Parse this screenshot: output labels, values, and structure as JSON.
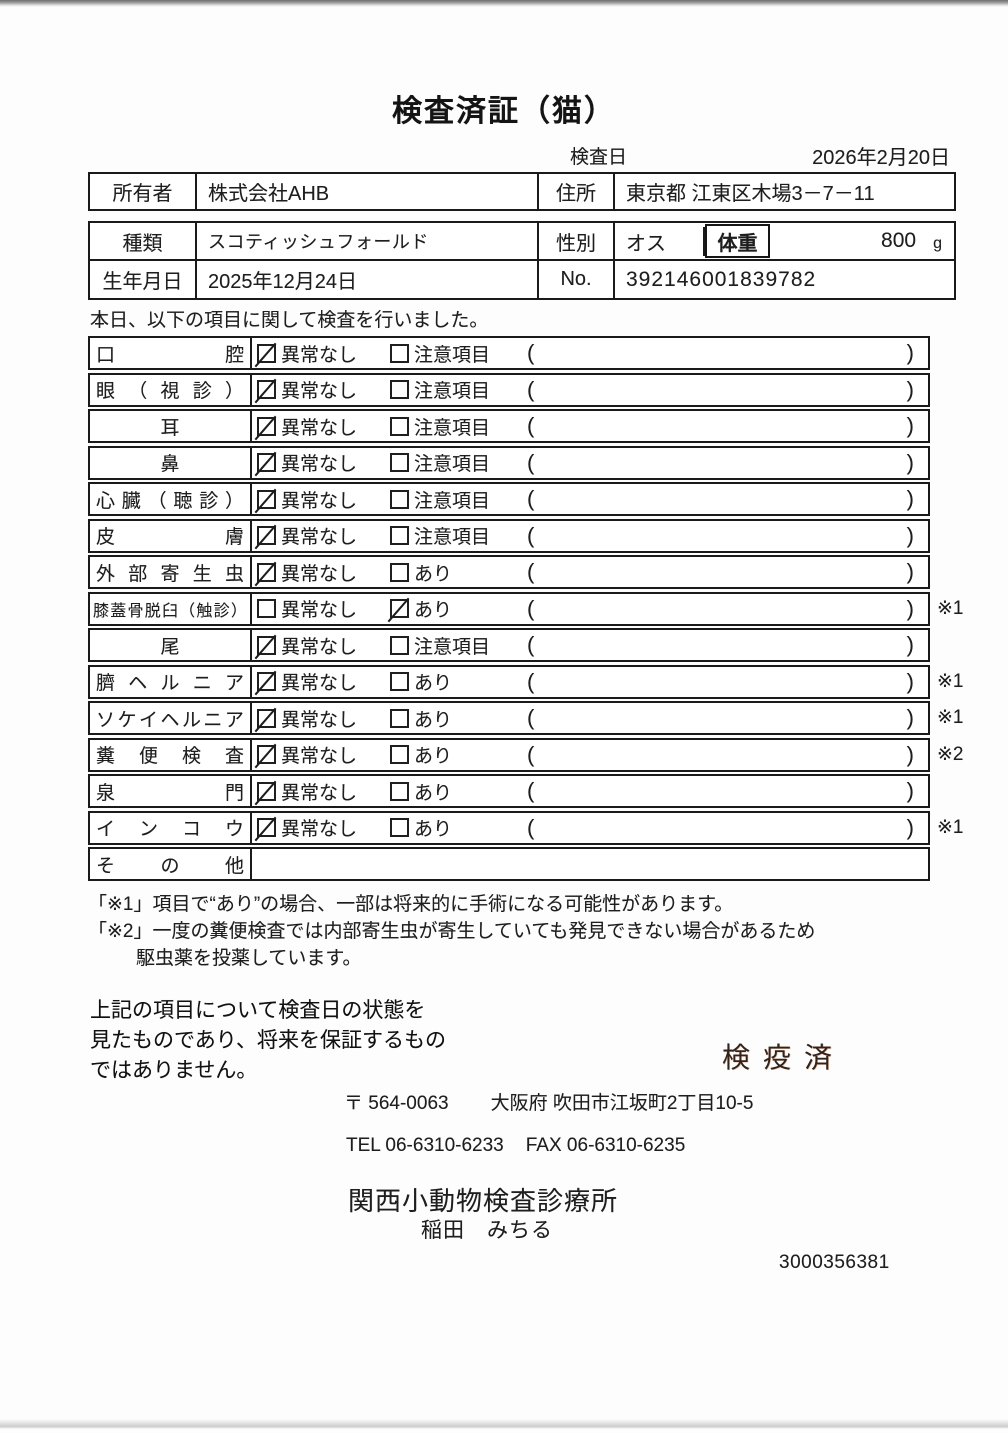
{
  "title": "検査済証（猫）",
  "inspection": {
    "date_label": "検査日",
    "date_value": "2026年2月20日"
  },
  "owner_box": {
    "owner_label": "所有者",
    "owner_value": "株式会社AHB",
    "address_label": "住所",
    "address_value": "東京都 江東区木場3－7－11"
  },
  "animal_box": {
    "breed_label": "種類",
    "breed_value": "スコティッシュフォールド",
    "sex_label": "性別",
    "sex_value": "オス",
    "weight_label": "体重",
    "weight_value": "800",
    "weight_unit": "g",
    "birth_label": "生年月日",
    "birth_value": "2025年12月24日",
    "no_label": "No.",
    "no_value": "392146001839782"
  },
  "intro": "本日、以下の項目に関して検査を行いました。",
  "table": {
    "parens": {
      "open": "(",
      "close": ")"
    },
    "rows": [
      {
        "label": "口腔",
        "opt1": "異常なし",
        "opt2": "注意項目",
        "checked1": true,
        "checked2": false,
        "note": ""
      },
      {
        "label": "眼（視診）",
        "opt1": "異常なし",
        "opt2": "注意項目",
        "checked1": true,
        "checked2": false,
        "note": ""
      },
      {
        "label": "耳",
        "opt1": "異常なし",
        "opt2": "注意項目",
        "checked1": true,
        "checked2": false,
        "note": ""
      },
      {
        "label": "鼻",
        "opt1": "異常なし",
        "opt2": "注意項目",
        "checked1": true,
        "checked2": false,
        "note": ""
      },
      {
        "label": "心臓（聴診）",
        "opt1": "異常なし",
        "opt2": "注意項目",
        "checked1": true,
        "checked2": false,
        "note": ""
      },
      {
        "label": "皮膚",
        "opt1": "異常なし",
        "opt2": "注意項目",
        "checked1": true,
        "checked2": false,
        "note": ""
      },
      {
        "label": "外部寄生虫",
        "opt1": "異常なし",
        "opt2": "あり",
        "checked1": true,
        "checked2": false,
        "note": ""
      },
      {
        "label": "膝蓋骨脱臼（触診）",
        "opt1": "異常なし",
        "opt2": "あり",
        "checked1": false,
        "checked2": true,
        "note": "※1"
      },
      {
        "label": "尾",
        "opt1": "異常なし",
        "opt2": "注意項目",
        "checked1": true,
        "checked2": false,
        "note": ""
      },
      {
        "label": "臍ヘルニア",
        "opt1": "異常なし",
        "opt2": "あり",
        "checked1": true,
        "checked2": false,
        "note": "※1"
      },
      {
        "label": "ソケイヘルニア",
        "opt1": "異常なし",
        "opt2": "あり",
        "checked1": true,
        "checked2": false,
        "note": "※1"
      },
      {
        "label": "糞便検査",
        "opt1": "異常なし",
        "opt2": "あり",
        "checked1": true,
        "checked2": false,
        "note": "※2"
      },
      {
        "label": "泉門",
        "opt1": "異常なし",
        "opt2": "あり",
        "checked1": true,
        "checked2": false,
        "note": ""
      },
      {
        "label": "インコウ",
        "opt1": "異常なし",
        "opt2": "あり",
        "checked1": true,
        "checked2": false,
        "note": "※1"
      },
      {
        "label": "その他",
        "opt1": "",
        "opt2": "",
        "checked1": false,
        "checked2": false,
        "note": ""
      }
    ]
  },
  "notes": {
    "note1": "「※1」項目で“あり”の場合、一部は将来的に手術になる可能性があります。",
    "note2": "「※2」一度の糞便検査では内部寄生虫が寄生していても発見できない場合があるため",
    "note3": "駆虫薬を投薬しています。"
  },
  "footer": {
    "disclaimer_line1": "上記の項目について検査日の状態を",
    "disclaimer_line2": "見たものであり、将来を保証するもの",
    "disclaimer_line3": "ではありません。",
    "quarantine_stamp": "検疫済",
    "postal_code": "〒 564-0063",
    "clinic_address": "大阪府 吹田市江坂町2丁目10-5",
    "tel": "TEL 06-6310-6233",
    "fax": "FAX 06-6310-6235",
    "clinic_name": "関西小動物検査診療所",
    "veterinarian": "稲田　みちる",
    "serial_number": "3000356381"
  }
}
